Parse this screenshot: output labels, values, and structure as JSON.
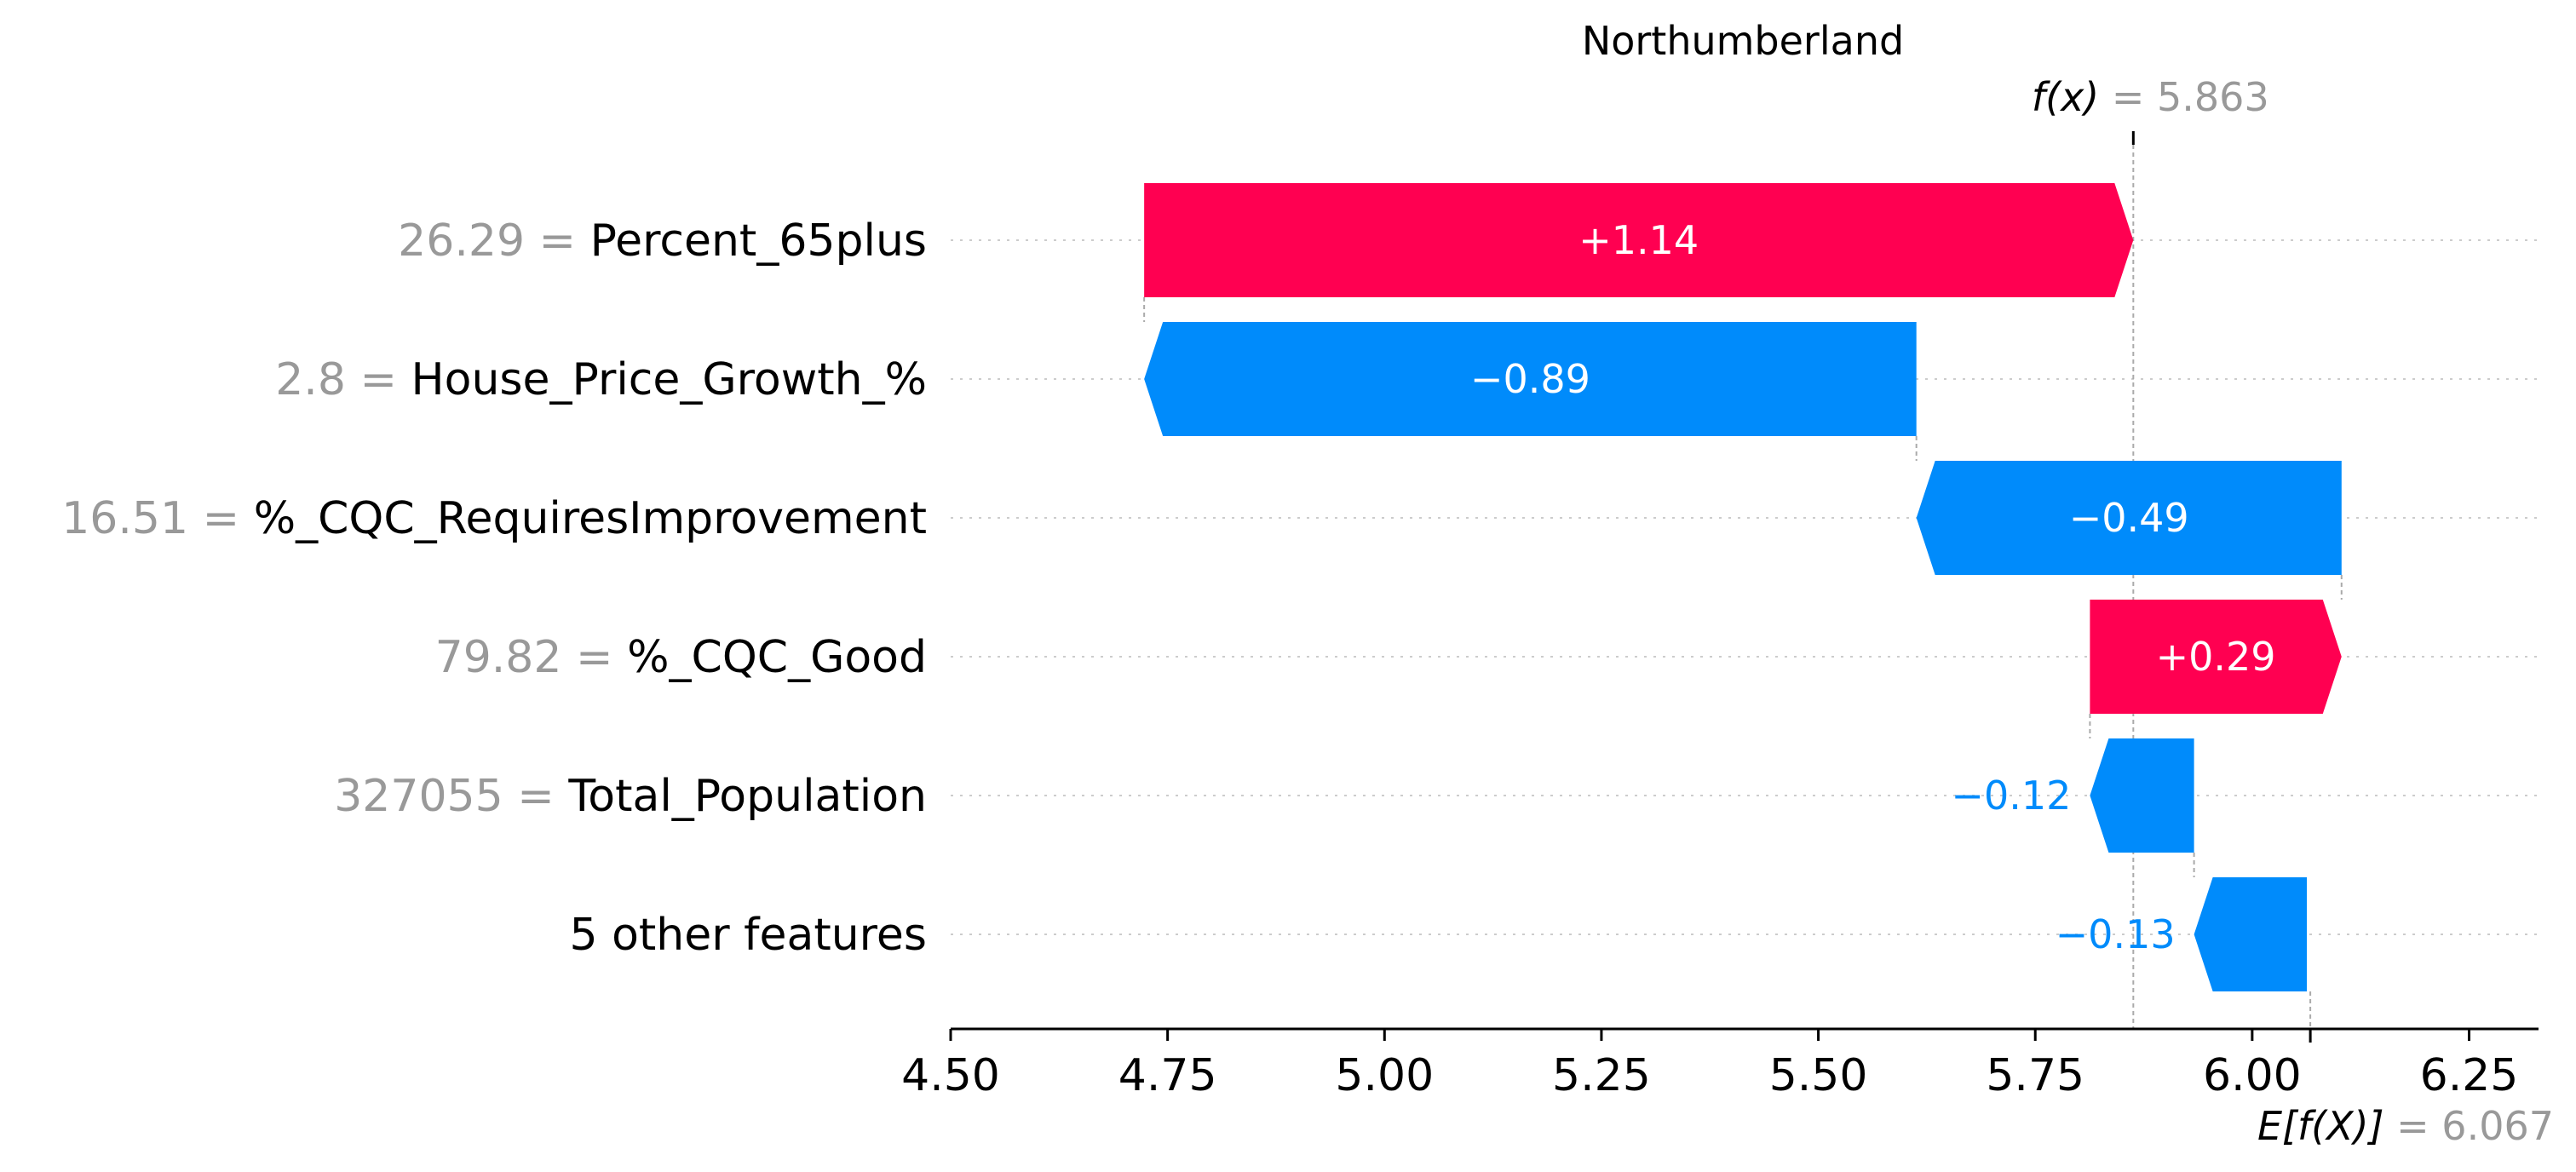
{
  "chart_data": {
    "type": "waterfall",
    "title": "Northumberland",
    "features": [
      {
        "value_text": "26.29",
        "name": "Percent_65plus",
        "contribution": 1.14,
        "label": "+1.14",
        "color": "#ff0051"
      },
      {
        "value_text": "2.8",
        "name": "House_Price_Growth_%",
        "contribution": -0.89,
        "label": "−0.89",
        "color": "#008bfb"
      },
      {
        "value_text": "16.51",
        "name": "%_CQC_RequiresImprovement",
        "contribution": -0.49,
        "label": "−0.49",
        "color": "#008bfb"
      },
      {
        "value_text": "79.82",
        "name": "%_CQC_Good",
        "contribution": 0.29,
        "label": "+0.29",
        "color": "#ff0051"
      },
      {
        "value_text": "327055",
        "name": "Total_Population",
        "contribution": -0.12,
        "label": "−0.12",
        "color": "#008bfb"
      },
      {
        "value_text": "",
        "name": "5 other features",
        "contribution": -0.13,
        "label": "−0.13",
        "color": "#008bfb"
      }
    ],
    "fx": {
      "label": "f(x)",
      "value": "5.863"
    },
    "base": {
      "label": "E[f(X)]",
      "value": "6.067"
    },
    "x_ticks": [
      "4.50",
      "4.75",
      "5.00",
      "5.25",
      "5.50",
      "5.75",
      "6.00",
      "6.25"
    ],
    "xlim": [
      4.5,
      6.33
    ],
    "colors": {
      "positive": "#ff0051",
      "negative": "#008bfb",
      "grid": "#cccccc",
      "muted": "#999999"
    }
  }
}
